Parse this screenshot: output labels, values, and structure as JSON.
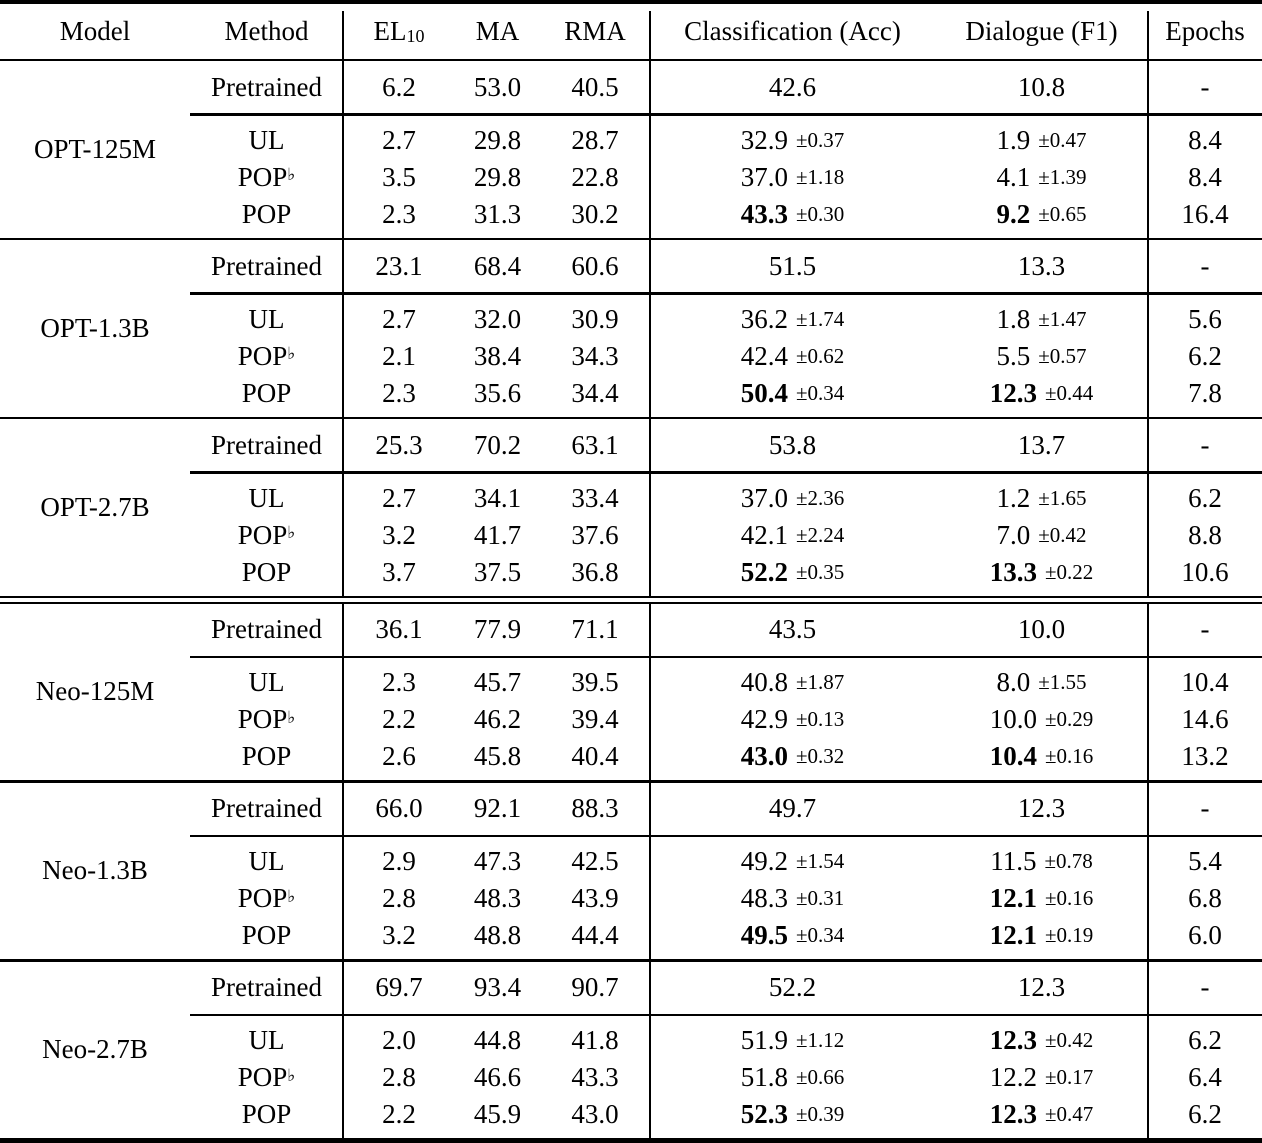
{
  "table": {
    "headers": {
      "model": "Model",
      "method": "Method",
      "el_base": "EL",
      "el_sub": "10",
      "ma": "MA",
      "rma": "RMA",
      "classification": "Classification (Acc)",
      "dialogue": "Dialogue (F1)",
      "epochs": "Epochs"
    },
    "groups": [
      {
        "model": "OPT-125M",
        "pretrained": {
          "method": "Pretrained",
          "el10": "6.2",
          "ma": "53.0",
          "rma": "40.5",
          "cls": "42.6",
          "dial": "10.8",
          "epochs": "-"
        },
        "rows": [
          {
            "method": "UL",
            "sup": "",
            "el10": "2.7",
            "ma": "29.8",
            "rma": "28.7",
            "cls": "32.9",
            "cls_pm": "±0.37",
            "cls_bold": false,
            "dial": "1.9",
            "dial_pm": "±0.47",
            "dial_bold": false,
            "epochs": "8.4"
          },
          {
            "method": "POP",
            "sup": "♭",
            "el10": "3.5",
            "ma": "29.8",
            "rma": "22.8",
            "cls": "37.0",
            "cls_pm": "±1.18",
            "cls_bold": false,
            "dial": "4.1",
            "dial_pm": "±1.39",
            "dial_bold": false,
            "epochs": "8.4"
          },
          {
            "method": "POP",
            "sup": "",
            "el10": "2.3",
            "ma": "31.3",
            "rma": "30.2",
            "cls": "43.3",
            "cls_pm": "±0.30",
            "cls_bold": true,
            "dial": "9.2",
            "dial_pm": "±0.65",
            "dial_bold": true,
            "epochs": "16.4"
          }
        ]
      },
      {
        "model": "OPT-1.3B",
        "pretrained": {
          "method": "Pretrained",
          "el10": "23.1",
          "ma": "68.4",
          "rma": "60.6",
          "cls": "51.5",
          "dial": "13.3",
          "epochs": "-"
        },
        "rows": [
          {
            "method": "UL",
            "sup": "",
            "el10": "2.7",
            "ma": "32.0",
            "rma": "30.9",
            "cls": "36.2",
            "cls_pm": "±1.74",
            "cls_bold": false,
            "dial": "1.8",
            "dial_pm": "±1.47",
            "dial_bold": false,
            "epochs": "5.6"
          },
          {
            "method": "POP",
            "sup": "♭",
            "el10": "2.1",
            "ma": "38.4",
            "rma": "34.3",
            "cls": "42.4",
            "cls_pm": "±0.62",
            "cls_bold": false,
            "dial": "5.5",
            "dial_pm": "±0.57",
            "dial_bold": false,
            "epochs": "6.2"
          },
          {
            "method": "POP",
            "sup": "",
            "el10": "2.3",
            "ma": "35.6",
            "rma": "34.4",
            "cls": "50.4",
            "cls_pm": "±0.34",
            "cls_bold": true,
            "dial": "12.3",
            "dial_pm": "±0.44",
            "dial_bold": true,
            "epochs": "7.8"
          }
        ]
      },
      {
        "model": "OPT-2.7B",
        "pretrained": {
          "method": "Pretrained",
          "el10": "25.3",
          "ma": "70.2",
          "rma": "63.1",
          "cls": "53.8",
          "dial": "13.7",
          "epochs": "-"
        },
        "rows": [
          {
            "method": "UL",
            "sup": "",
            "el10": "2.7",
            "ma": "34.1",
            "rma": "33.4",
            "cls": "37.0",
            "cls_pm": "±2.36",
            "cls_bold": false,
            "dial": "1.2",
            "dial_pm": "±1.65",
            "dial_bold": false,
            "epochs": "6.2"
          },
          {
            "method": "POP",
            "sup": "♭",
            "el10": "3.2",
            "ma": "41.7",
            "rma": "37.6",
            "cls": "42.1",
            "cls_pm": "±2.24",
            "cls_bold": false,
            "dial": "7.0",
            "dial_pm": "±0.42",
            "dial_bold": false,
            "epochs": "8.8"
          },
          {
            "method": "POP",
            "sup": "",
            "el10": "3.7",
            "ma": "37.5",
            "rma": "36.8",
            "cls": "52.2",
            "cls_pm": "±0.35",
            "cls_bold": true,
            "dial": "13.3",
            "dial_pm": "±0.22",
            "dial_bold": true,
            "epochs": "10.6"
          }
        ]
      },
      {
        "model": "Neo-125M",
        "pretrained": {
          "method": "Pretrained",
          "el10": "36.1",
          "ma": "77.9",
          "rma": "71.1",
          "cls": "43.5",
          "dial": "10.0",
          "epochs": "-"
        },
        "rows": [
          {
            "method": "UL",
            "sup": "",
            "el10": "2.3",
            "ma": "45.7",
            "rma": "39.5",
            "cls": "40.8",
            "cls_pm": "±1.87",
            "cls_bold": false,
            "dial": "8.0",
            "dial_pm": "±1.55",
            "dial_bold": false,
            "epochs": "10.4"
          },
          {
            "method": "POP",
            "sup": "♭",
            "el10": "2.2",
            "ma": "46.2",
            "rma": "39.4",
            "cls": "42.9",
            "cls_pm": "±0.13",
            "cls_bold": false,
            "dial": "10.0",
            "dial_pm": "±0.29",
            "dial_bold": false,
            "epochs": "14.6"
          },
          {
            "method": "POP",
            "sup": "",
            "el10": "2.6",
            "ma": "45.8",
            "rma": "40.4",
            "cls": "43.0",
            "cls_pm": "±0.32",
            "cls_bold": true,
            "dial": "10.4",
            "dial_pm": "±0.16",
            "dial_bold": true,
            "epochs": "13.2"
          }
        ]
      },
      {
        "model": "Neo-1.3B",
        "pretrained": {
          "method": "Pretrained",
          "el10": "66.0",
          "ma": "92.1",
          "rma": "88.3",
          "cls": "49.7",
          "dial": "12.3",
          "epochs": "-"
        },
        "rows": [
          {
            "method": "UL",
            "sup": "",
            "el10": "2.9",
            "ma": "47.3",
            "rma": "42.5",
            "cls": "49.2",
            "cls_pm": "±1.54",
            "cls_bold": false,
            "dial": "11.5",
            "dial_pm": "±0.78",
            "dial_bold": false,
            "epochs": "5.4"
          },
          {
            "method": "POP",
            "sup": "♭",
            "el10": "2.8",
            "ma": "48.3",
            "rma": "43.9",
            "cls": "48.3",
            "cls_pm": "±0.31",
            "cls_bold": false,
            "dial": "12.1",
            "dial_pm": "±0.16",
            "dial_bold": true,
            "epochs": "6.8"
          },
          {
            "method": "POP",
            "sup": "",
            "el10": "3.2",
            "ma": "48.8",
            "rma": "44.4",
            "cls": "49.5",
            "cls_pm": "±0.34",
            "cls_bold": true,
            "dial": "12.1",
            "dial_pm": "±0.19",
            "dial_bold": true,
            "epochs": "6.0"
          }
        ]
      },
      {
        "model": "Neo-2.7B",
        "pretrained": {
          "method": "Pretrained",
          "el10": "69.7",
          "ma": "93.4",
          "rma": "90.7",
          "cls": "52.2",
          "dial": "12.3",
          "epochs": "-"
        },
        "rows": [
          {
            "method": "UL",
            "sup": "",
            "el10": "2.0",
            "ma": "44.8",
            "rma": "41.8",
            "cls": "51.9",
            "cls_pm": "±1.12",
            "cls_bold": false,
            "dial": "12.3",
            "dial_pm": "±0.42",
            "dial_bold": true,
            "epochs": "6.2"
          },
          {
            "method": "POP",
            "sup": "♭",
            "el10": "2.8",
            "ma": "46.6",
            "rma": "43.3",
            "cls": "51.8",
            "cls_pm": "±0.66",
            "cls_bold": false,
            "dial": "12.2",
            "dial_pm": "±0.17",
            "dial_bold": false,
            "epochs": "6.4"
          },
          {
            "method": "POP",
            "sup": "",
            "el10": "2.2",
            "ma": "45.9",
            "rma": "43.0",
            "cls": "52.3",
            "cls_pm": "±0.39",
            "cls_bold": true,
            "dial": "12.3",
            "dial_pm": "±0.47",
            "dial_bold": true,
            "epochs": "6.2"
          }
        ]
      }
    ]
  }
}
